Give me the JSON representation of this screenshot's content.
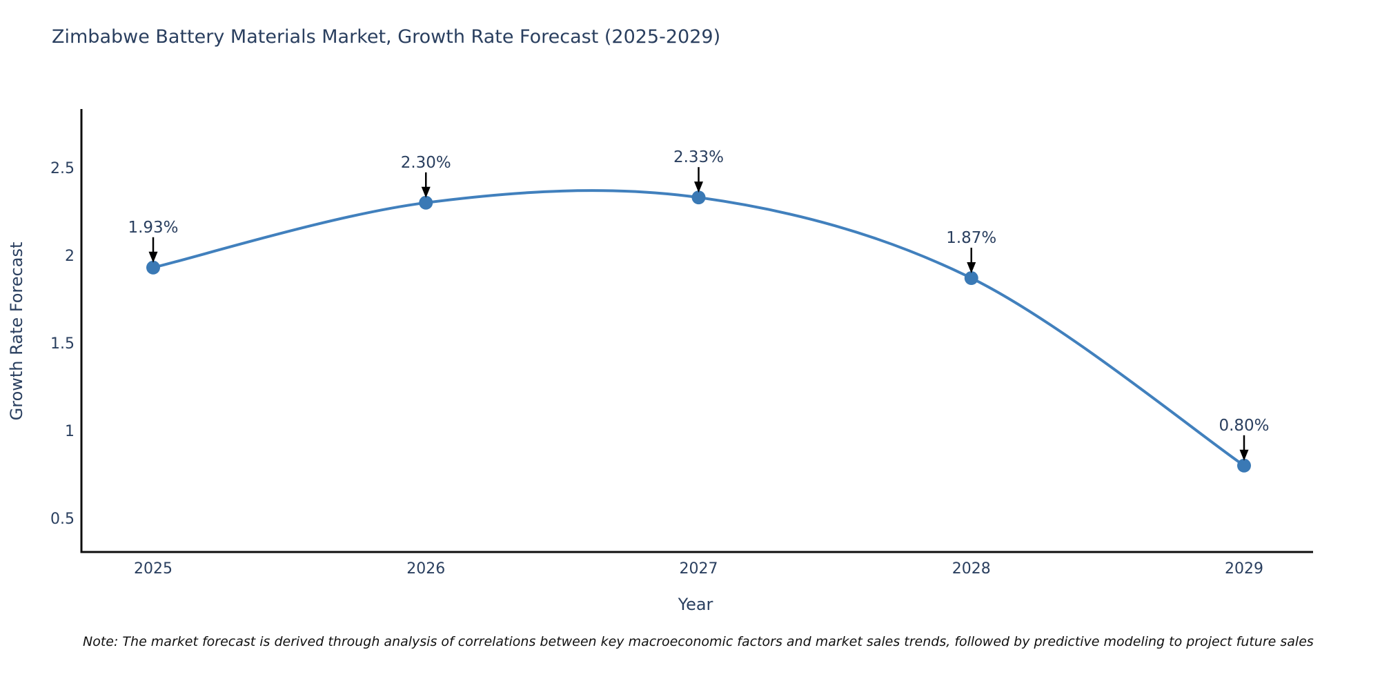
{
  "title": "Zimbabwe Battery Materials Market, Growth Rate Forecast (2025-2029)",
  "note": "Note: The market forecast is derived through analysis of correlations between key macroeconomic factors and market sales trends, followed by predictive modeling to project future sales",
  "colors": {
    "line": "#4180bd",
    "marker": "#3a79b5",
    "axis": "#0d0d0d",
    "text": "#2a3f5f",
    "arrow": "#000000",
    "background": "#ffffff"
  },
  "chart_data": {
    "type": "line",
    "title": "Zimbabwe Battery Materials Market, Growth Rate Forecast (2025-2029)",
    "xlabel": "Year",
    "ylabel": "Growth Rate Forecast",
    "categories": [
      2025,
      2026,
      2027,
      2028,
      2029
    ],
    "values": [
      1.93,
      2.3,
      2.33,
      1.87,
      0.8
    ],
    "point_labels": [
      "1.93%",
      "2.30%",
      "2.33%",
      "1.87%",
      "0.80%"
    ],
    "yticks": [
      0.5,
      1,
      1.5,
      2,
      2.5
    ],
    "ylim": [
      0.31,
      2.83
    ],
    "xlim": [
      2024.73,
      2029.25
    ],
    "line_shape": "spline",
    "grid": false,
    "legend": "none",
    "annotations_style": "value labels above points with black down arrows"
  }
}
